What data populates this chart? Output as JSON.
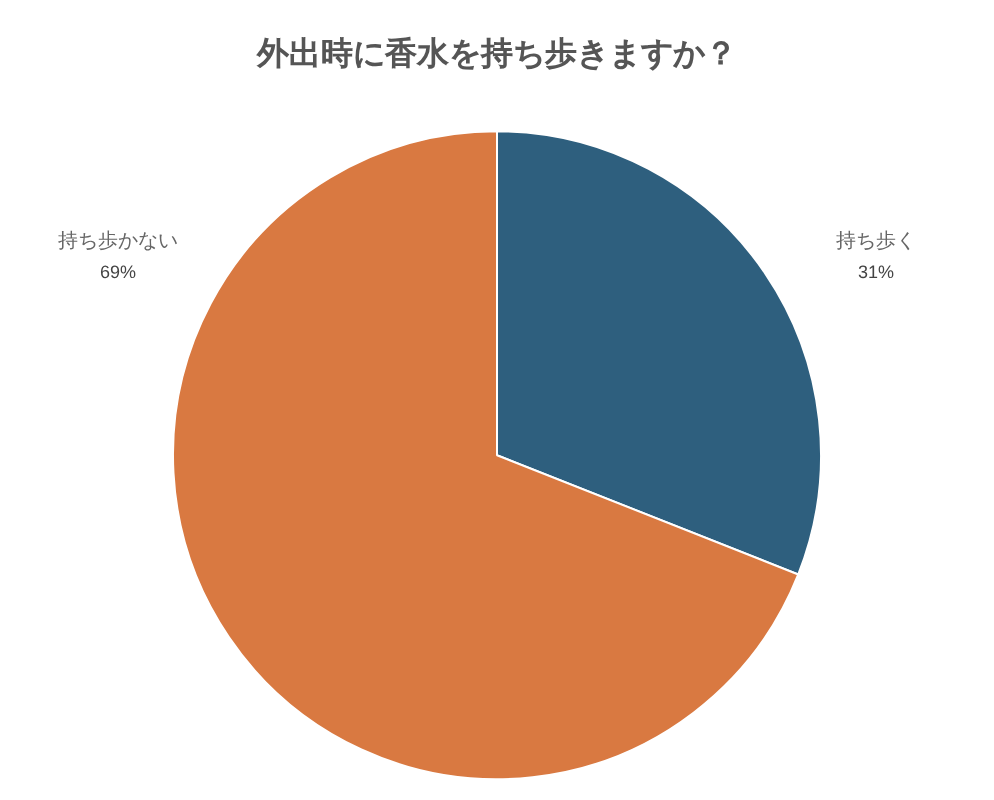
{
  "chart_data": {
    "type": "pie",
    "title": "外出時に香水を持ち歩きますか？",
    "categories": [
      "持ち歩く",
      "持ち歩かない"
    ],
    "values": [
      31,
      69
    ],
    "colors": [
      "#2e5f7e",
      "#d97941"
    ],
    "value_labels": [
      "31%",
      "69%"
    ],
    "legend": false
  }
}
